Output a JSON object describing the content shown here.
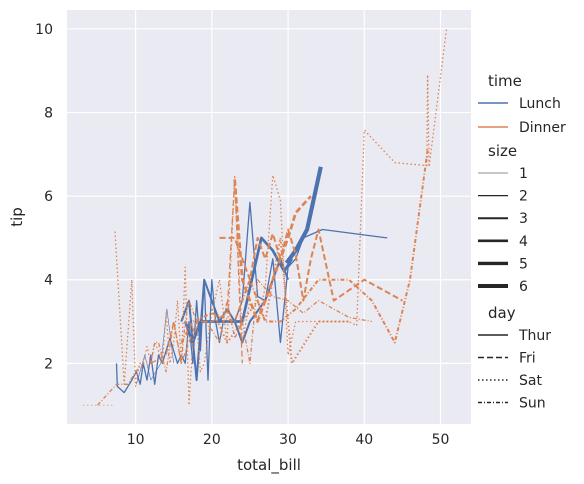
{
  "chart_data": {
    "type": "line",
    "xlabel": "total_bill",
    "ylabel": "tip",
    "xlim": [
      1,
      54
    ],
    "ylim": [
      0.55,
      10.45
    ],
    "xticks": [
      10,
      20,
      30,
      40,
      50
    ],
    "yticks": [
      2,
      4,
      6,
      8,
      10
    ],
    "grid": true,
    "background": "#eaeaf2",
    "legend_position": "right",
    "hue": {
      "title": "time",
      "levels": [
        {
          "name": "Lunch",
          "color": "#4c72b0"
        },
        {
          "name": "Dinner",
          "color": "#dd8452"
        }
      ]
    },
    "size_legend": {
      "title": "size",
      "levels": [
        {
          "name": "1",
          "width": 0.6
        },
        {
          "name": "2",
          "width": 1.3
        },
        {
          "name": "3",
          "width": 2.0
        },
        {
          "name": "4",
          "width": 2.7
        },
        {
          "name": "5",
          "width": 3.4
        },
        {
          "name": "6",
          "width": 4.1
        }
      ]
    },
    "style_legend": {
      "title": "day",
      "levels": [
        {
          "name": "Thur",
          "dash": ""
        },
        {
          "name": "Fri",
          "dash": "6 3"
        },
        {
          "name": "Sat",
          "dash": "1.5 2.5"
        },
        {
          "name": "Sun",
          "dash": "4 2 1 2"
        }
      ]
    },
    "series": [
      {
        "time": "Lunch",
        "size": "2",
        "day": "Thur",
        "points": [
          [
            7.5,
            2.0
          ],
          [
            7.6,
            1.45
          ],
          [
            8.5,
            1.3
          ],
          [
            9.5,
            1.6
          ],
          [
            10.1,
            1.8
          ],
          [
            10.6,
            1.5
          ],
          [
            11.0,
            2.0
          ],
          [
            11.5,
            1.6
          ],
          [
            12.0,
            2.2
          ],
          [
            12.5,
            1.5
          ],
          [
            13.0,
            2.2
          ],
          [
            13.5,
            2.0
          ],
          [
            14.0,
            2.3
          ],
          [
            14.5,
            2.6
          ],
          [
            15.0,
            2.3
          ],
          [
            15.5,
            2.0
          ],
          [
            16.0,
            2.2
          ],
          [
            16.5,
            2.0
          ],
          [
            17.0,
            3.0
          ],
          [
            17.5,
            2.0
          ],
          [
            18.0,
            3.5
          ],
          [
            18.5,
            2.3
          ],
          [
            19.0,
            4.0
          ],
          [
            19.5,
            1.6
          ],
          [
            20.0,
            4.0
          ],
          [
            20.5,
            3.0
          ],
          [
            21.0,
            2.5
          ],
          [
            21.5,
            3.0
          ],
          [
            22.0,
            3.0
          ],
          [
            23.0,
            3.0
          ],
          [
            24.0,
            3.5
          ],
          [
            25.0,
            5.85
          ],
          [
            26.0,
            3.6
          ],
          [
            27.0,
            3.5
          ],
          [
            28.0,
            4.5
          ],
          [
            29.0,
            2.5
          ],
          [
            30.0,
            4.3
          ],
          [
            31.0,
            4.5
          ],
          [
            32.0,
            5.0
          ],
          [
            34.5,
            5.2
          ],
          [
            43.0,
            5.0
          ]
        ]
      },
      {
        "time": "Lunch",
        "size": "3",
        "day": "Thur",
        "points": [
          [
            16.0,
            3.0
          ],
          [
            17.0,
            3.5
          ],
          [
            18.0,
            1.6
          ],
          [
            19.0,
            4.0
          ],
          [
            20.0,
            3.5
          ],
          [
            21.0,
            3.0
          ],
          [
            22.0,
            3.3
          ],
          [
            23.0,
            3.0
          ],
          [
            24.0,
            2.5
          ],
          [
            25.0,
            3.0
          ],
          [
            27.0,
            3.5
          ],
          [
            28.0,
            4.0
          ],
          [
            29.0,
            4.5
          ],
          [
            30.0,
            4.0
          ]
        ]
      },
      {
        "time": "Lunch",
        "size": "4",
        "day": "Thur",
        "points": [
          [
            16.5,
            3.0
          ],
          [
            17.5,
            2.5
          ],
          [
            18.5,
            3.0
          ],
          [
            24.0,
            3.0
          ],
          [
            26.5,
            5.0
          ],
          [
            28.0,
            4.7
          ],
          [
            29.5,
            4.2
          ],
          [
            30.5,
            4.5
          ]
        ]
      },
      {
        "time": "Lunch",
        "size": "6",
        "day": "Thur",
        "points": [
          [
            29.8,
            4.4
          ],
          [
            31.0,
            4.7
          ],
          [
            32.5,
            5.2
          ],
          [
            34.3,
            6.7
          ]
        ]
      },
      {
        "time": "Lunch",
        "size": "1",
        "day": "Thur",
        "points": [
          [
            10.1,
            1.5
          ],
          [
            11.2,
            2.2
          ],
          [
            12.0,
            1.6
          ],
          [
            13.3,
            2.0
          ],
          [
            14.1,
            3.3
          ],
          [
            15.0,
            2.0
          ]
        ]
      },
      {
        "time": "Dinner",
        "size": "2",
        "day": "Sat",
        "points": [
          [
            7.3,
            5.15
          ],
          [
            8.5,
            1.5
          ],
          [
            9.5,
            4.0
          ],
          [
            10.0,
            1.45
          ],
          [
            10.5,
            2.0
          ],
          [
            11.0,
            2.0
          ],
          [
            11.5,
            2.4
          ],
          [
            12.0,
            2.0
          ],
          [
            12.5,
            2.5
          ],
          [
            13.0,
            2.3
          ],
          [
            13.5,
            2.0
          ],
          [
            14.0,
            3.2
          ],
          [
            14.5,
            2.0
          ],
          [
            15.0,
            2.5
          ],
          [
            15.5,
            3.5
          ],
          [
            16.0,
            2.0
          ],
          [
            16.5,
            4.3
          ],
          [
            17.0,
            1.0
          ],
          [
            17.5,
            2.5
          ],
          [
            18.0,
            3.0
          ],
          [
            18.5,
            1.8
          ],
          [
            19.0,
            2.0
          ],
          [
            20.0,
            3.2
          ],
          [
            21.0,
            4.0
          ],
          [
            22.0,
            2.5
          ],
          [
            23.0,
            6.5
          ],
          [
            24.0,
            2.5
          ],
          [
            25.0,
            3.5
          ],
          [
            26.0,
            3.0
          ],
          [
            27.0,
            3.8
          ],
          [
            28.0,
            6.5
          ],
          [
            29.0,
            5.9
          ],
          [
            30.0,
            2.2
          ],
          [
            31.0,
            3.0
          ],
          [
            35.0,
            3.0
          ],
          [
            38.0,
            3.0
          ],
          [
            39.0,
            2.9
          ],
          [
            40.0,
            7.58
          ],
          [
            44.0,
            6.8
          ],
          [
            48.2,
            6.73
          ],
          [
            48.3,
            8.9
          ],
          [
            48.5,
            6.7
          ],
          [
            50.8,
            10.0
          ]
        ]
      },
      {
        "time": "Dinner",
        "size": "1",
        "day": "Sat",
        "points": [
          [
            3.1,
            1.0
          ],
          [
            7.0,
            1.0
          ]
        ]
      },
      {
        "time": "Dinner",
        "size": "3",
        "day": "Sat",
        "points": [
          [
            20.0,
            3.3
          ],
          [
            22.0,
            2.5
          ],
          [
            26.0,
            3.5
          ],
          [
            27.0,
            3.0
          ],
          [
            28.0,
            4.0
          ],
          [
            29.0,
            5.0
          ],
          [
            30.5,
            2.0
          ],
          [
            34.0,
            3.0
          ],
          [
            38.0,
            3.0
          ]
        ]
      },
      {
        "time": "Dinner",
        "size": "2",
        "day": "Sun",
        "points": [
          [
            5.0,
            1.0
          ],
          [
            7.5,
            1.5
          ],
          [
            9.0,
            1.5
          ],
          [
            10.0,
            1.8
          ],
          [
            11.0,
            2.0
          ],
          [
            12.0,
            2.0
          ],
          [
            12.5,
            2.5
          ],
          [
            13.0,
            2.5
          ],
          [
            14.0,
            1.8
          ],
          [
            15.0,
            3.0
          ],
          [
            16.0,
            2.0
          ],
          [
            16.5,
            3.0
          ],
          [
            17.0,
            3.5
          ],
          [
            18.0,
            3.0
          ],
          [
            19.0,
            3.0
          ],
          [
            20.0,
            2.8
          ],
          [
            21.0,
            2.5
          ],
          [
            22.0,
            3.5
          ],
          [
            23.0,
            2.6
          ],
          [
            24.0,
            3.0
          ],
          [
            25.0,
            2.0
          ],
          [
            26.0,
            4.0
          ],
          [
            28.0,
            3.6
          ],
          [
            30.0,
            3.5
          ],
          [
            32.0,
            3.2
          ],
          [
            34.0,
            3.5
          ],
          [
            38.0,
            3.1
          ],
          [
            41.0,
            3.0
          ]
        ]
      },
      {
        "time": "Dinner",
        "size": "3",
        "day": "Sun",
        "points": [
          [
            16.0,
            2.5
          ],
          [
            17.5,
            3.0
          ],
          [
            20.0,
            3.2
          ],
          [
            23.0,
            3.0
          ],
          [
            25.0,
            4.0
          ],
          [
            27.0,
            3.0
          ],
          [
            29.0,
            3.0
          ],
          [
            31.0,
            3.3
          ],
          [
            34.0,
            4.0
          ],
          [
            38.0,
            4.0
          ],
          [
            41.0,
            3.5
          ],
          [
            44.0,
            2.5
          ],
          [
            46.0,
            4.0
          ],
          [
            48.3,
            7.1
          ]
        ]
      },
      {
        "time": "Dinner",
        "size": "2",
        "day": "Fri",
        "points": [
          [
            12.0,
            2.0
          ],
          [
            14.0,
            2.2
          ],
          [
            15.0,
            3.0
          ],
          [
            16.0,
            2.0
          ],
          [
            18.0,
            3.0
          ],
          [
            20.0,
            3.0
          ],
          [
            21.0,
            3.1
          ],
          [
            22.0,
            3.2
          ],
          [
            23.0,
            6.4
          ],
          [
            24.0,
            2.0
          ]
        ]
      },
      {
        "time": "Dinner",
        "size": "3",
        "day": "Fri",
        "points": [
          [
            21.0,
            5.0
          ],
          [
            23.0,
            5.0
          ],
          [
            25.0,
            4.0
          ],
          [
            26.0,
            5.0
          ],
          [
            27.0,
            4.5
          ],
          [
            28.0,
            5.1
          ],
          [
            29.0,
            4.5
          ],
          [
            30.0,
            5.2
          ],
          [
            31.0,
            4.6
          ],
          [
            32.0,
            3.5
          ],
          [
            33.0,
            4.5
          ],
          [
            34.0,
            5.2
          ],
          [
            36.0,
            3.5
          ],
          [
            40.0,
            4.0
          ],
          [
            45.0,
            3.5
          ]
        ]
      },
      {
        "time": "Dinner",
        "size": "4",
        "day": "Fri",
        "points": [
          [
            23.0,
            6.4
          ],
          [
            24.0,
            4.0
          ],
          [
            26.0,
            3.0
          ],
          [
            28.0,
            4.0
          ],
          [
            29.0,
            4.5
          ],
          [
            30.0,
            5.0
          ],
          [
            31.0,
            5.6
          ],
          [
            33.0,
            6.0
          ]
        ]
      }
    ]
  }
}
